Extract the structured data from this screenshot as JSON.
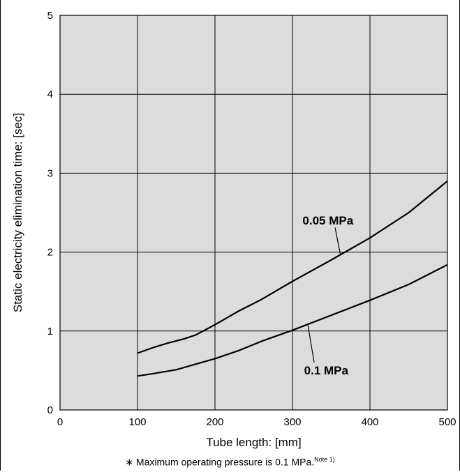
{
  "chart_data": {
    "type": "line",
    "title": "",
    "xlabel": "Tube length: [mm]",
    "ylabel": "Static electricity elimination time: [sec]",
    "xlim": [
      0,
      500
    ],
    "ylim": [
      0,
      5
    ],
    "x_ticks": [
      "0",
      "100",
      "200",
      "300",
      "400",
      "500"
    ],
    "y_ticks": [
      "0",
      "1",
      "2",
      "3",
      "4",
      "5"
    ],
    "grid": true,
    "series": [
      {
        "name": "0.05 MPa",
        "x": [
          100,
          120,
          140,
          160,
          175,
          200,
          230,
          260,
          300,
          350,
          400,
          450,
          500
        ],
        "y": [
          0.72,
          0.79,
          0.85,
          0.9,
          0.95,
          1.08,
          1.25,
          1.4,
          1.63,
          1.9,
          2.18,
          2.5,
          2.9
        ]
      },
      {
        "name": "0.1 MPa",
        "x": [
          100,
          120,
          150,
          175,
          200,
          230,
          260,
          300,
          350,
          400,
          450,
          500
        ],
        "y": [
          0.43,
          0.46,
          0.51,
          0.58,
          0.65,
          0.75,
          0.87,
          1.01,
          1.2,
          1.39,
          1.59,
          1.84
        ]
      }
    ]
  },
  "footnote": {
    "text": "∗ Maximum operating pressure is 0.1 MPa.",
    "note": "Note 1)"
  },
  "colors": {
    "plot_bg": "#dcdcdc",
    "line": "#000000",
    "grid": "#000000"
  }
}
